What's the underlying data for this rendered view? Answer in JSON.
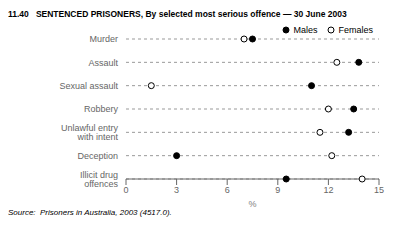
{
  "chart_data": {
    "type": "dot",
    "title": "11.40   SENTENCED PRISONERS, By selected most serious offence — 30 June 2003",
    "categories": [
      "Murder",
      "Assault",
      "Sexual assault",
      "Robbery",
      "Unlawful entry with intent",
      "Deception",
      "Illicit drug offences"
    ],
    "series": [
      {
        "name": "Males",
        "color": "#000000",
        "marker": "circle",
        "values": [
          7.5,
          13.8,
          11.0,
          13.5,
          13.2,
          3.0,
          9.5
        ]
      },
      {
        "name": "Females",
        "color": "#000000",
        "marker": "open_circle",
        "values": [
          7.0,
          12.5,
          1.5,
          12.0,
          11.5,
          12.2,
          14.0
        ]
      }
    ],
    "xlabel": "%",
    "xlim": [
      0,
      15
    ],
    "xticks": [
      0,
      3,
      6,
      9,
      12,
      15
    ],
    "grid": true,
    "legend": "upper right",
    "annotations": [
      "Source:  Prisoners in Australia, 2003 (4517.0)."
    ]
  }
}
